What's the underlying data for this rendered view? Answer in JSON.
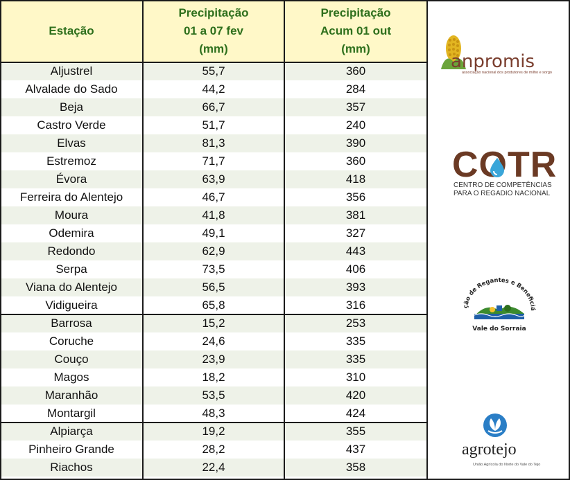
{
  "headers": {
    "station": "Estação",
    "weekly": [
      "Precipitação",
      "01 a 07 fev",
      "(mm)"
    ],
    "cumulative": [
      "Precipitação",
      "Acum 01 out",
      "(mm)"
    ]
  },
  "rows": [
    {
      "station": "Aljustrel",
      "weekly": "55,7",
      "cumulative": "360"
    },
    {
      "station": "Alvalade do Sado",
      "weekly": "44,2",
      "cumulative": "284"
    },
    {
      "station": "Beja",
      "weekly": "66,7",
      "cumulative": "357"
    },
    {
      "station": "Castro Verde",
      "weekly": "51,7",
      "cumulative": "240"
    },
    {
      "station": "Elvas",
      "weekly": "81,3",
      "cumulative": "390"
    },
    {
      "station": "Estremoz",
      "weekly": "71,7",
      "cumulative": "360"
    },
    {
      "station": "Évora",
      "weekly": "63,9",
      "cumulative": "418"
    },
    {
      "station": "Ferreira do Alentejo",
      "weekly": "46,7",
      "cumulative": "356"
    },
    {
      "station": "Moura",
      "weekly": "41,8",
      "cumulative": "381"
    },
    {
      "station": "Odemira",
      "weekly": "49,1",
      "cumulative": "327"
    },
    {
      "station": "Redondo",
      "weekly": "62,9",
      "cumulative": "443"
    },
    {
      "station": "Serpa",
      "weekly": "73,5",
      "cumulative": "406"
    },
    {
      "station": "Viana do Alentejo",
      "weekly": "56,5",
      "cumulative": "393"
    },
    {
      "station": "Vidigueira",
      "weekly": "65,8",
      "cumulative": "316"
    },
    {
      "station": "Barrosa",
      "weekly": "15,2",
      "cumulative": "253"
    },
    {
      "station": "Coruche",
      "weekly": "24,6",
      "cumulative": "335"
    },
    {
      "station": "Couço",
      "weekly": "23,9",
      "cumulative": "335"
    },
    {
      "station": "Magos",
      "weekly": "18,2",
      "cumulative": "310"
    },
    {
      "station": "Maranhão",
      "weekly": "53,5",
      "cumulative": "420"
    },
    {
      "station": "Montargil",
      "weekly": "48,3",
      "cumulative": "424"
    },
    {
      "station": "Alpiarça",
      "weekly": "19,2",
      "cumulative": "355"
    },
    {
      "station": "Pinheiro Grande",
      "weekly": "28,2",
      "cumulative": "437"
    },
    {
      "station": "Riachos",
      "weekly": "22,4",
      "cumulative": "358"
    }
  ],
  "logos": {
    "anpromis": {
      "name": "anpromis",
      "subtitle": "associação nacional dos produtores de milho e sorgo",
      "icon": "corn-icon"
    },
    "cotr": {
      "name": "COTR",
      "subtitle_lines": [
        "CENTRO DE COMPETÊNCIAS",
        "PARA O REGADIO NACIONAL"
      ],
      "icon": "water-drop-icon"
    },
    "arbvs": {
      "arc_text": "Associação de Regantes e Beneficiários do",
      "bottom_text": "Vale do Sorraia",
      "icon": "landscape-seal-icon"
    },
    "agrotejo": {
      "name": "agrotejo",
      "subtitle": "União Agrícola do Norte do Vale do Tejo",
      "icon": "leaf-icon"
    }
  },
  "colors": {
    "header_bg": "#FFF8C8",
    "header_text": "#2E6F1C",
    "row_alt": "#EEF2E8",
    "grid": "#1a1a1a"
  }
}
